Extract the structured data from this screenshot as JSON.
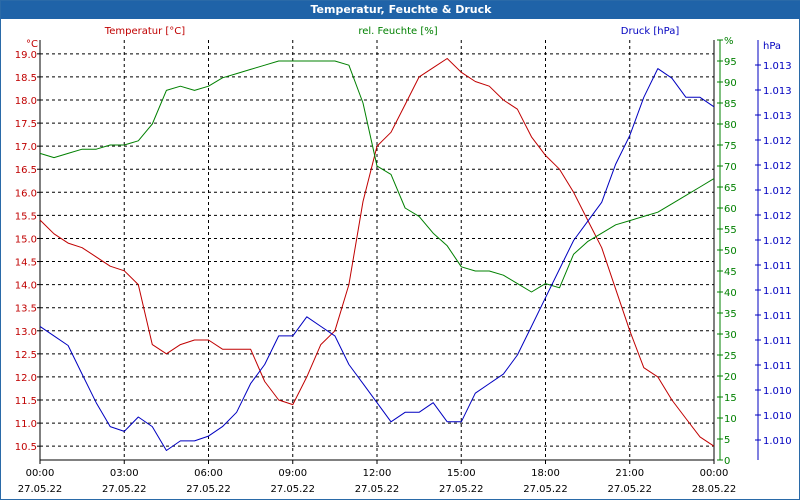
{
  "title": "Temperatur, Feuchte & Druck",
  "colors": {
    "temp": "#c00000",
    "hum": "#008000",
    "press": "#0000c0",
    "grid": "#000000",
    "titlebar": "#1f63a8"
  },
  "chart_data": {
    "type": "line",
    "title": "Temperatur, Feuchte & Druck",
    "grid": true,
    "x_tick_labels": [
      {
        "time": "00:00",
        "date": "27.05.22"
      },
      {
        "time": "03:00",
        "date": "27.05.22"
      },
      {
        "time": "06:00",
        "date": "27.05.22"
      },
      {
        "time": "09:00",
        "date": "27.05.22"
      },
      {
        "time": "12:00",
        "date": "27.05.22"
      },
      {
        "time": "15:00",
        "date": "27.05.22"
      },
      {
        "time": "18:00",
        "date": "27.05.22"
      },
      {
        "time": "21:00",
        "date": "27.05.22"
      },
      {
        "time": "00:00",
        "date": "28.05.22"
      }
    ],
    "axes": {
      "temp": {
        "label": "Temperatur [°C]",
        "unit": "°C",
        "ylim": [
          10.2,
          19.3
        ],
        "ticks": [
          "10.5",
          "11.0",
          "11.5",
          "12.0",
          "12.5",
          "13.0",
          "13.5",
          "14.0",
          "14.5",
          "15.0",
          "15.5",
          "16.0",
          "16.5",
          "17.0",
          "17.5",
          "18.0",
          "18.5",
          "19.0"
        ]
      },
      "hum": {
        "label": "rel. Feuchte [%]",
        "unit": "%",
        "ylim": [
          0,
          100
        ],
        "ticks": [
          "0",
          "5",
          "10",
          "15",
          "20",
          "25",
          "30",
          "35",
          "40",
          "45",
          "50",
          "55",
          "60",
          "65",
          "70",
          "75",
          "80",
          "85",
          "90",
          "95",
          "%"
        ]
      },
      "press": {
        "label": "Druck [hPa]",
        "unit": "hPa",
        "ticks": [
          "1.010",
          "1.010",
          "1.010",
          "1.011",
          "1.011",
          "1.011",
          "1.011",
          "1.011",
          "1.012",
          "1.012",
          "1.012",
          "1.012",
          "1.012",
          "1.013",
          "1.013",
          "1.013",
          "hPa"
        ]
      }
    },
    "x_hours": [
      0,
      0.5,
      1,
      1.5,
      2,
      2.5,
      3,
      3.5,
      4,
      4.5,
      5,
      5.5,
      6,
      6.5,
      7,
      7.5,
      8,
      8.5,
      9,
      9.5,
      10,
      10.5,
      11,
      11.5,
      12,
      12.5,
      13,
      13.5,
      14,
      14.5,
      15,
      15.5,
      16,
      16.5,
      17,
      17.5,
      18,
      18.5,
      19,
      19.5,
      20,
      20.5,
      21,
      21.5,
      22,
      22.5,
      23,
      23.5,
      24
    ],
    "series": [
      {
        "name": "Temperatur [°C]",
        "axis": "temp",
        "values": [
          15.4,
          15.1,
          14.9,
          14.8,
          14.6,
          14.4,
          14.3,
          14.0,
          12.7,
          12.5,
          12.7,
          12.8,
          12.8,
          12.6,
          12.6,
          12.6,
          11.9,
          11.5,
          11.4,
          12.0,
          12.7,
          13.0,
          14.0,
          15.8,
          17.0,
          17.3,
          17.9,
          18.5,
          18.7,
          18.9,
          18.6,
          18.4,
          18.3,
          18.0,
          17.8,
          17.2,
          16.8,
          16.5,
          16.0,
          15.4,
          14.8,
          13.9,
          13.0,
          12.2,
          12.0,
          11.5,
          11.1,
          10.7,
          10.5
        ]
      },
      {
        "name": "rel. Feuchte [%]",
        "axis": "hum",
        "values": [
          73,
          72,
          73,
          74,
          74,
          75,
          75,
          76,
          80,
          88,
          89,
          88,
          89,
          91,
          92,
          93,
          94,
          95,
          95,
          95,
          95,
          95,
          94,
          85,
          70,
          68,
          60,
          58,
          54,
          51,
          46,
          45,
          45,
          44,
          42,
          40,
          42,
          41,
          49,
          52,
          54,
          56,
          57,
          58,
          59,
          61,
          63,
          65,
          67
        ]
      },
      {
        "name": "Druck [hPa]",
        "axis": "press",
        "values": [
          1.0112,
          1.0111,
          1.011,
          1.0107,
          1.0104,
          1.01015,
          1.0101,
          1.01025,
          1.01015,
          1.0099,
          1.01,
          1.01,
          1.01005,
          1.01015,
          1.0103,
          1.0106,
          1.0108,
          1.0111,
          1.0111,
          1.0113,
          1.0112,
          1.0111,
          1.0108,
          1.0106,
          1.0104,
          1.0102,
          1.0103,
          1.0103,
          1.0104,
          1.0102,
          1.0102,
          1.0105,
          1.0106,
          1.0107,
          1.0109,
          1.0112,
          1.0115,
          1.0118,
          1.0121,
          1.0123,
          1.0125,
          1.0129,
          1.0132,
          1.0136,
          1.0139,
          1.0138,
          1.0136,
          1.0136,
          1.0135
        ]
      }
    ]
  }
}
